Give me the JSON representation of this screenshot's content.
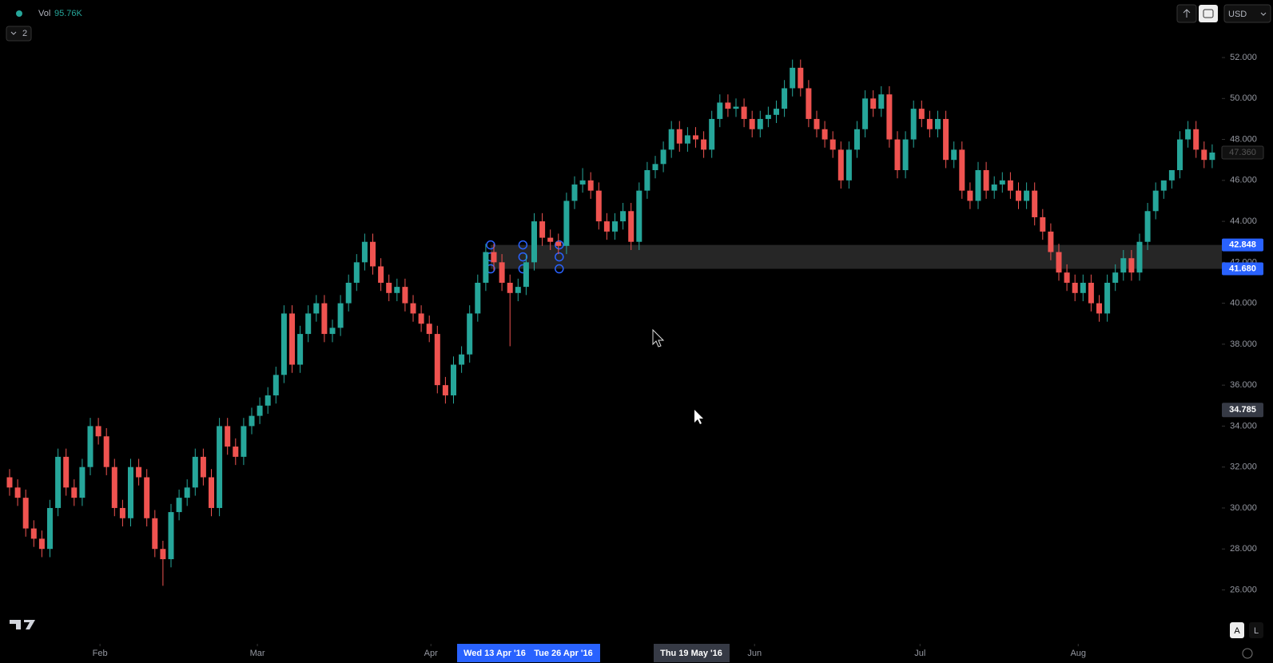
{
  "chart_data": {
    "type": "candlestick",
    "indicator": "Vol",
    "volume_label": "95.76K",
    "pane_count": "2",
    "currency": "USD",
    "auto_button": "A",
    "log_button": "L",
    "up_color": "#26a69a",
    "down_color": "#ef5350",
    "open": [
      31.5,
      31,
      30.5,
      29,
      28.5,
      28,
      30,
      32.5,
      31,
      30.5,
      32,
      34,
      33.5,
      32,
      30,
      29.5,
      32,
      31.5,
      29.5,
      28,
      27.5,
      29.8,
      30.5,
      31,
      32.5,
      31.5,
      30,
      34,
      33,
      32.5,
      34,
      34.5,
      35,
      35.5,
      36.5,
      39.5,
      37,
      38.5,
      39.5,
      40,
      38.5,
      38.8,
      40,
      41,
      42,
      43,
      41.8,
      41,
      40.5,
      40.8,
      40,
      39.5,
      39,
      38.5,
      36,
      35.5,
      37,
      37.5,
      39.5,
      41,
      42.5,
      42,
      41,
      40.5,
      40.8,
      42,
      44,
      43.2,
      43,
      42.8,
      45,
      45.8,
      46,
      45.5,
      44,
      43.5,
      44,
      44.5,
      43,
      45.5,
      46.5,
      46.8,
      47.5,
      48.5,
      47.8,
      48.2,
      48,
      47.5,
      49,
      49.8,
      49.5,
      49.6,
      49,
      48.5,
      49,
      49.2,
      49.5,
      50.5,
      51.5,
      50.5,
      49,
      48.5,
      48,
      47.5,
      46,
      47.5,
      48.5,
      50,
      49.5,
      50.2,
      48,
      46.5,
      48,
      49.5,
      49,
      48.5,
      49,
      47,
      47.5,
      45.5,
      45,
      46.5,
      45.5,
      45.8,
      46,
      45.5,
      45,
      45.5,
      44.2,
      43.5,
      42.5,
      41.5,
      41,
      40.5,
      41,
      40,
      39.5,
      41,
      41.5,
      42.2,
      41.5,
      43,
      44.5,
      45.5,
      46,
      46.5,
      48,
      48.5,
      47.5,
      47
    ],
    "high": [
      31.9,
      31.4,
      30.9,
      29.4,
      28.9,
      30.4,
      32.9,
      32.9,
      31.4,
      32.4,
      34.4,
      34.4,
      33.9,
      32.4,
      30.4,
      32.4,
      32.4,
      31.9,
      29.9,
      28.4,
      30.2,
      30.9,
      31.4,
      32.9,
      32.9,
      31.9,
      34.4,
      34.4,
      33.4,
      34.4,
      34.9,
      35.4,
      35.9,
      36.9,
      39.9,
      39.9,
      38.9,
      39.9,
      40.4,
      40.4,
      39.2,
      40.4,
      41.4,
      42.4,
      43.4,
      43.4,
      42.2,
      41.4,
      41.2,
      41.2,
      40.4,
      39.9,
      39.4,
      38.9,
      36.4,
      37.4,
      37.9,
      39.9,
      41.4,
      42.9,
      42.9,
      42.4,
      41.4,
      41.2,
      42.4,
      44.4,
      44.4,
      43.6,
      43.4,
      45.4,
      46.2,
      46.6,
      46.4,
      45.9,
      44.4,
      44.4,
      44.9,
      44.9,
      45.9,
      46.9,
      47.2,
      47.9,
      48.9,
      48.9,
      48.6,
      48.6,
      48.4,
      49.4,
      50.2,
      50.2,
      50,
      50,
      49.4,
      49.4,
      49.6,
      49.9,
      50.9,
      51.9,
      51.9,
      50.9,
      49.4,
      48.9,
      48.4,
      47.9,
      47.9,
      48.9,
      50.4,
      50.4,
      50.6,
      50.6,
      48.4,
      48.4,
      49.9,
      49.9,
      49.4,
      49.4,
      49.4,
      47.9,
      47.9,
      45.9,
      46.9,
      46.9,
      46.2,
      46.4,
      46.4,
      45.9,
      45.9,
      45.9,
      44.6,
      43.9,
      42.9,
      41.9,
      41.4,
      41.4,
      41.4,
      40.4,
      41.4,
      41.9,
      42.6,
      42.6,
      43.4,
      44.9,
      45.9,
      45.9,
      46.4,
      48.4,
      48.9,
      48.9,
      47.9,
      47.76
    ],
    "low": [
      30.6,
      30.1,
      28.6,
      28.1,
      27.6,
      27.6,
      29.6,
      30.6,
      30.1,
      30.1,
      31.6,
      33.1,
      31.6,
      29.6,
      29.1,
      29.1,
      31.1,
      29.1,
      27.6,
      26.2,
      27.1,
      29.4,
      30.1,
      30.6,
      31.1,
      29.6,
      29.6,
      32.6,
      32.1,
      32.1,
      33.6,
      34.1,
      34.6,
      35.1,
      36.1,
      36.6,
      36.6,
      38.1,
      39.1,
      38.1,
      38.1,
      38.4,
      39.6,
      40.6,
      41.6,
      41.4,
      40.6,
      40.1,
      40.1,
      39.6,
      39.1,
      38.6,
      38.1,
      35.6,
      35.1,
      35.1,
      36.6,
      37.1,
      39.1,
      40.6,
      41.6,
      40.6,
      37.9,
      40.1,
      40.4,
      41.6,
      42.8,
      42.6,
      42.4,
      42.4,
      44.6,
      45.4,
      45.1,
      43.6,
      43.1,
      43.1,
      43.6,
      42.6,
      42.6,
      45.1,
      46.1,
      46.4,
      47.1,
      47.4,
      47.4,
      47.6,
      47.1,
      47.1,
      48.6,
      49.1,
      49.1,
      48.6,
      48.1,
      48.1,
      48.6,
      48.8,
      49.1,
      50.1,
      50.1,
      48.6,
      48.1,
      47.6,
      47.1,
      45.6,
      45.6,
      47.1,
      48.1,
      49.1,
      49.1,
      47.6,
      46.1,
      46.1,
      47.6,
      48.6,
      48.1,
      48.1,
      46.6,
      46.6,
      45.1,
      44.6,
      44.6,
      45.1,
      45.1,
      45.4,
      45.1,
      44.6,
      44.6,
      43.8,
      43.1,
      42.1,
      41.1,
      40.6,
      40.1,
      40.1,
      39.6,
      39.1,
      39.1,
      40.6,
      41.1,
      41.1,
      41.1,
      42.6,
      44.1,
      45.1,
      45.6,
      46.1,
      47.6,
      47.1,
      46.6,
      46.6
    ],
    "close": [
      31,
      30.5,
      29,
      28.5,
      28,
      30,
      32.5,
      31,
      30.5,
      32,
      34,
      33.5,
      32,
      30,
      29.5,
      32,
      31.5,
      29.5,
      28,
      27.5,
      29.8,
      30.5,
      31,
      32.5,
      31.5,
      30,
      34,
      33,
      32.5,
      34,
      34.5,
      35,
      35.5,
      36.5,
      39.5,
      37,
      38.5,
      39.5,
      40,
      38.5,
      38.8,
      40,
      41,
      42,
      43,
      41.8,
      41,
      40.5,
      40.8,
      40,
      39.5,
      39,
      38.5,
      36,
      35.5,
      37,
      37.5,
      39.5,
      41,
      42.5,
      42,
      41,
      40.5,
      40.8,
      42,
      44,
      43.2,
      43,
      42.8,
      45,
      45.8,
      46,
      45.5,
      44,
      43.5,
      44,
      44.5,
      43,
      45.5,
      46.5,
      46.8,
      47.5,
      48.5,
      47.8,
      48.2,
      48,
      47.5,
      49,
      49.8,
      49.5,
      49.6,
      49,
      48.5,
      49,
      49.2,
      49.5,
      50.5,
      51.5,
      50.5,
      49,
      48.5,
      48,
      47.5,
      46,
      47.5,
      48.5,
      50,
      49.5,
      50.2,
      48,
      46.5,
      48,
      49.5,
      49,
      48.5,
      49,
      47,
      47.5,
      45.5,
      45,
      46.5,
      45.5,
      45.8,
      46,
      45.5,
      45,
      45.5,
      44.2,
      43.5,
      42.5,
      41.5,
      41,
      40.5,
      41,
      40,
      39.5,
      41,
      41.5,
      42.2,
      41.5,
      43,
      44.5,
      45.5,
      46,
      46.5,
      48,
      48.5,
      47.5,
      47,
      47.36
    ],
    "xticks": [
      {
        "value": 11.2,
        "label": "Feb"
      },
      {
        "value": 30.7,
        "label": "Mar"
      },
      {
        "value": 52.2,
        "label": "Apr"
      },
      {
        "value": 92.3,
        "label": "Jun"
      },
      {
        "value": 112.8,
        "label": "Jul"
      },
      {
        "value": 132.4,
        "label": "Aug"
      }
    ],
    "ylim": [
      23.6,
      54.81
    ],
    "yticks": [
      {
        "value": 26,
        "label": "26.000"
      },
      {
        "value": 28,
        "label": "28.000"
      },
      {
        "value": 30,
        "label": "30.000"
      },
      {
        "value": 32,
        "label": "32.000"
      },
      {
        "value": 34,
        "label": "34.000"
      },
      {
        "value": 36,
        "label": "36.000"
      },
      {
        "value": 38,
        "label": "38.000"
      },
      {
        "value": 40,
        "label": "40.000"
      },
      {
        "value": 42,
        "label": "42.000"
      },
      {
        "value": 44,
        "label": "44.000"
      },
      {
        "value": 46,
        "label": "46.000"
      },
      {
        "value": 48,
        "label": "48.000"
      },
      {
        "value": 50,
        "label": "50.000"
      },
      {
        "value": 52,
        "label": "52.000"
      }
    ],
    "zone": [
      42.848,
      {
        "value": 41.68,
        "label": "41.680"
      }
    ],
    "crosshair_price": 34.785,
    "last_price": {
      "value": 47.36,
      "label": "47.360"
    },
    "range_dates": [
      "Wed 13 Apr '16",
      "Tue 26 Apr '16"
    ],
    "crosshair_date": "Thu 19 May '16"
  }
}
